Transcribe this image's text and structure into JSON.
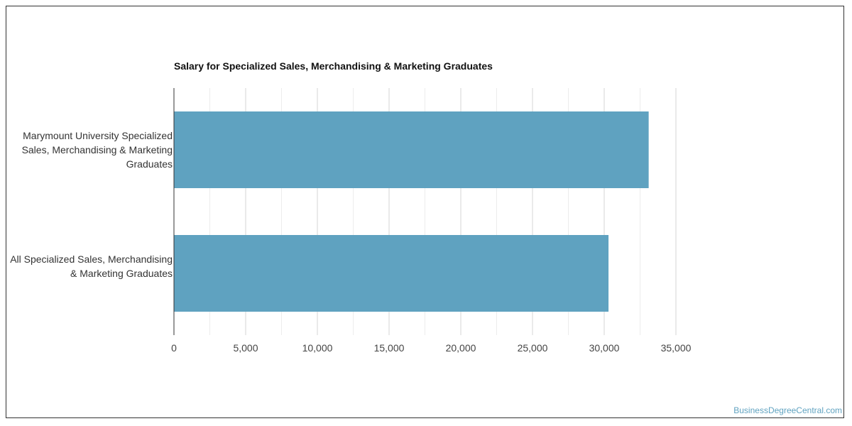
{
  "chart_data": {
    "type": "bar",
    "orientation": "horizontal",
    "title": "Salary for Specialized Sales, Merchandising & Marketing Graduates",
    "xlabel": "",
    "ylabel": "",
    "categories": [
      "Marymount University Specialized Sales, Merchandising & Marketing Graduates",
      "All Specialized Sales, Merchandising & Marketing Graduates"
    ],
    "values": [
      33100,
      30300
    ],
    "xlim": [
      0,
      35000
    ],
    "ticks": [
      0,
      5000,
      10000,
      15000,
      20000,
      25000,
      30000,
      35000
    ],
    "tick_labels": [
      "0",
      "5,000",
      "10,000",
      "15,000",
      "20,000",
      "25,000",
      "30,000",
      "35,000"
    ],
    "bar_color": "#5fa2c0",
    "grid": true,
    "legend": "none"
  },
  "watermark": "BusinessDegreeCentral.com"
}
